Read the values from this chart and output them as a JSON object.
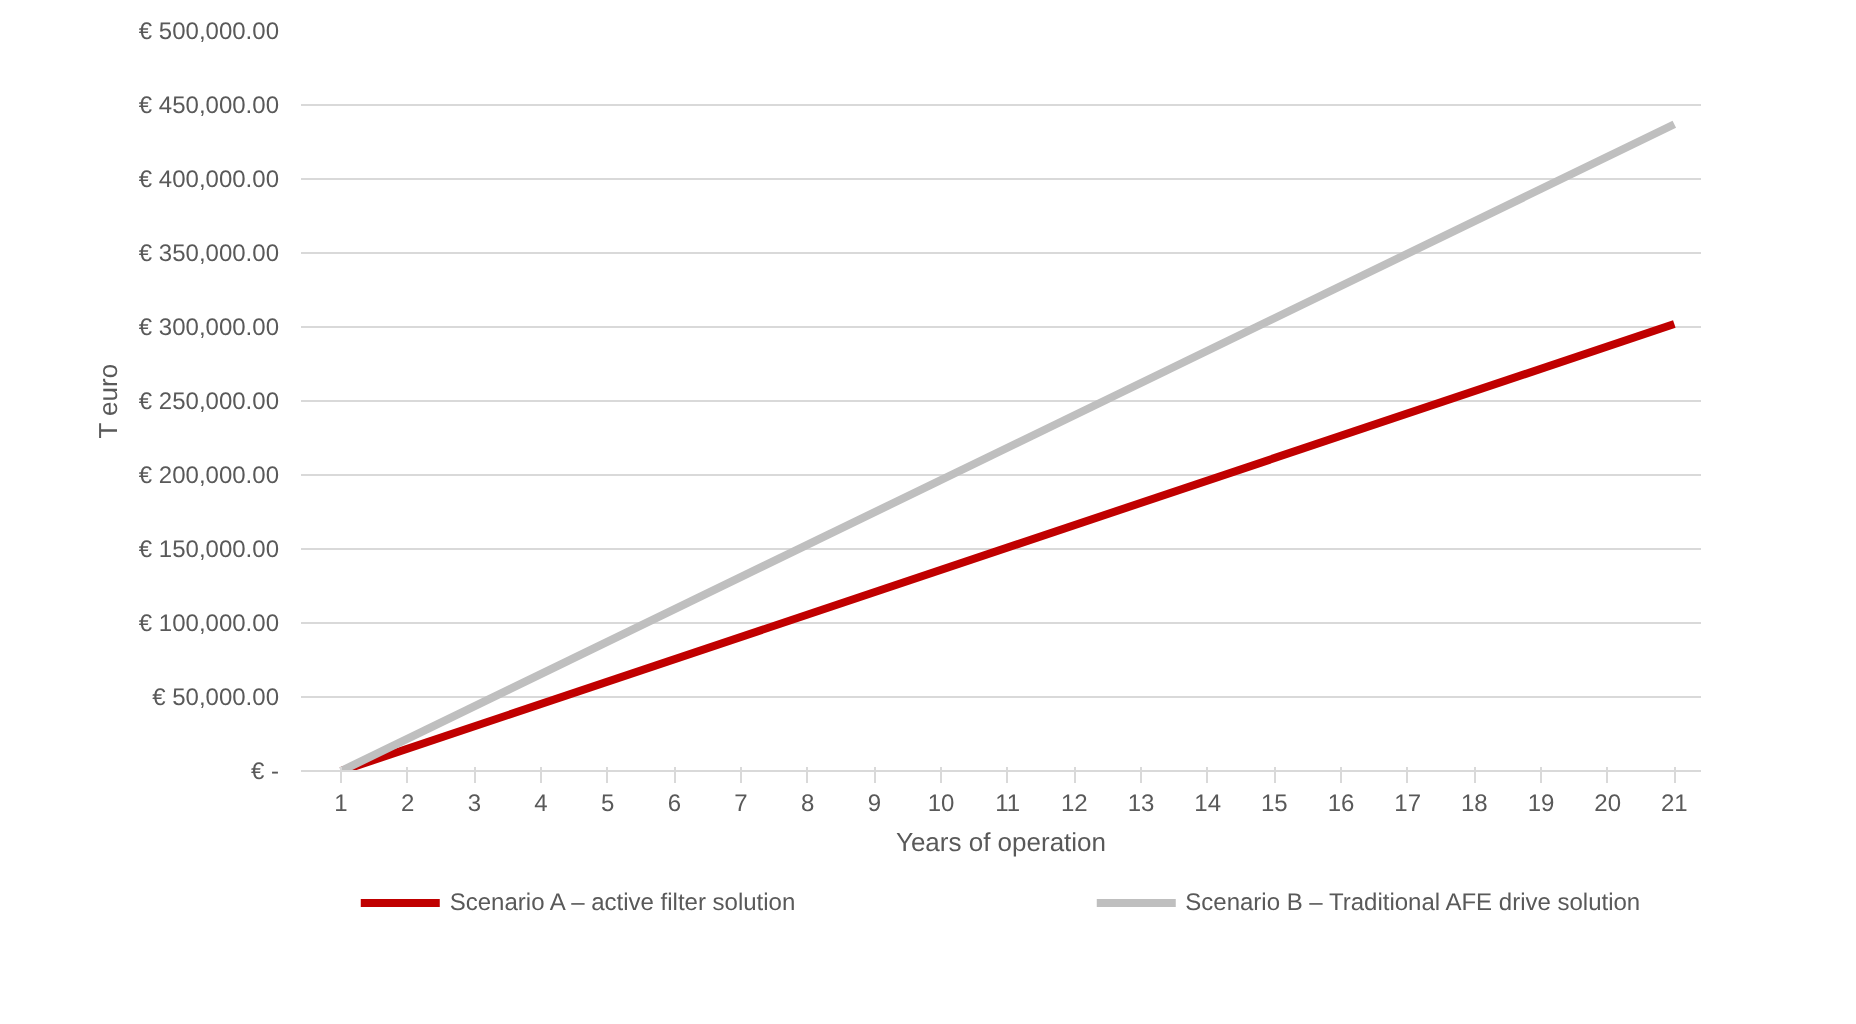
{
  "chart_data": {
    "type": "line",
    "xlabel": "Years of operation",
    "ylabel": "T euro",
    "x": [
      1,
      21
    ],
    "series": [
      {
        "name": "Scenario A – active filter solution",
        "color": "#c00000",
        "values": [
          0,
          302000
        ]
      },
      {
        "name": "Scenario B – Traditional AFE drive solution",
        "color": "#bfbfbf",
        "values": [
          0,
          437000
        ]
      }
    ],
    "xlim": [
      0.4,
      21.4
    ],
    "xticks": [
      1,
      2,
      3,
      4,
      5,
      6,
      7,
      8,
      9,
      10,
      11,
      12,
      13,
      14,
      15,
      16,
      17,
      18,
      19,
      20,
      21
    ],
    "ylim": [
      0,
      500000
    ],
    "yticks": [
      {
        "value": 0,
        "label": "€ -"
      },
      {
        "value": 50000,
        "label": "€ 50,000.00"
      },
      {
        "value": 100000,
        "label": "€ 100,000.00"
      },
      {
        "value": 150000,
        "label": "€ 150,000.00"
      },
      {
        "value": 200000,
        "label": "€ 200,000.00"
      },
      {
        "value": 250000,
        "label": "€ 250,000.00"
      },
      {
        "value": 300000,
        "label": "€ 300,000.00"
      },
      {
        "value": 350000,
        "label": "€ 350,000.00"
      },
      {
        "value": 400000,
        "label": "€ 400,000.00"
      },
      {
        "value": 450000,
        "label": "€ 450,000.00"
      },
      {
        "value": 500000,
        "label": "€ 500,000.00"
      }
    ],
    "grid": "y",
    "legend": "bottom",
    "marker": "none",
    "line_style": "solid"
  }
}
